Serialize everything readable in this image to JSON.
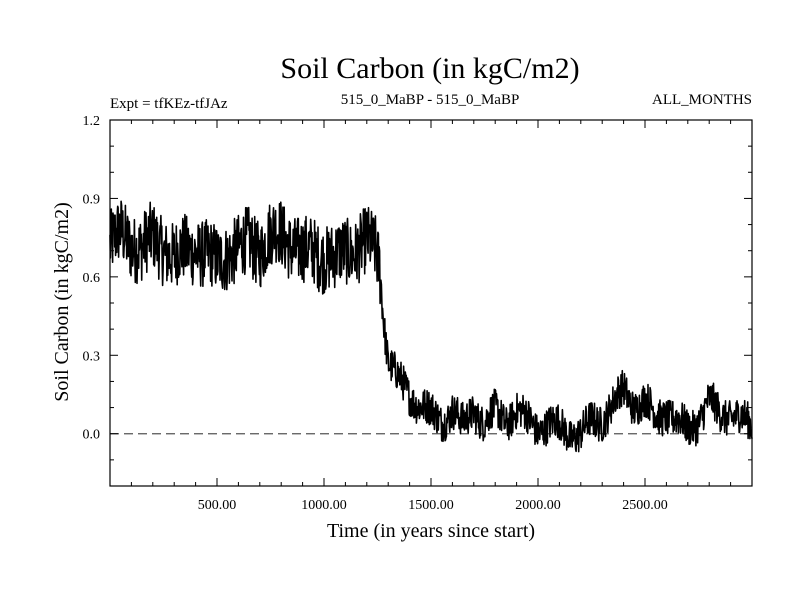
{
  "chart_data": {
    "type": "line",
    "title": "Soil Carbon (in kgC/m2)",
    "subtitle_left": "Expt = tfKEz-tfJAz",
    "subtitle_center": "515_0_MaBP - 515_0_MaBP",
    "subtitle_right": "ALL_MONTHS",
    "xlabel": "Time (in years since start)",
    "ylabel": "Soil Carbon (in kgC/m2)",
    "xlim": [
      0,
      3000
    ],
    "ylim": [
      -0.2,
      1.2
    ],
    "xticks": [
      500,
      1000,
      1500,
      2000,
      2500
    ],
    "xtick_labels": [
      "500.00",
      "1000.00",
      "1500.00",
      "2000.00",
      "2500.00"
    ],
    "yticks": [
      0.0,
      0.3,
      0.6,
      0.9,
      1.2
    ],
    "ytick_labels": [
      "0.0",
      "0.3",
      "0.6",
      "0.9",
      "1.2"
    ],
    "zero_line": "dashed",
    "grid": false,
    "series": [
      {
        "color": "#000000",
        "x": [
          0,
          50,
          100,
          150,
          200,
          250,
          300,
          350,
          400,
          450,
          500,
          550,
          600,
          650,
          700,
          750,
          800,
          850,
          900,
          950,
          1000,
          1050,
          1100,
          1150,
          1200,
          1240,
          1260,
          1280,
          1300,
          1350,
          1400,
          1450,
          1500,
          1550,
          1600,
          1650,
          1700,
          1750,
          1800,
          1850,
          1900,
          1950,
          2000,
          2050,
          2100,
          2150,
          2200,
          2250,
          2300,
          2350,
          2400,
          2450,
          2500,
          2550,
          2600,
          2650,
          2700,
          2750,
          2800,
          2850,
          2900,
          2950,
          3000
        ],
        "values": [
          0.72,
          0.75,
          0.7,
          0.68,
          0.72,
          0.7,
          0.68,
          0.72,
          0.74,
          0.71,
          0.68,
          0.7,
          0.69,
          0.71,
          0.67,
          0.73,
          0.75,
          0.72,
          0.7,
          0.73,
          0.71,
          0.69,
          0.72,
          0.7,
          0.71,
          0.68,
          0.62,
          0.4,
          0.25,
          0.18,
          0.14,
          0.12,
          0.1,
          0.08,
          0.12,
          0.05,
          0.1,
          0.03,
          0.06,
          0.02,
          0.06,
          0.04,
          0.02,
          0.05,
          0.06,
          0.03,
          0.02,
          0.06,
          0.05,
          0.09,
          0.14,
          0.08,
          0.1,
          0.06,
          0.09,
          0.07,
          0.05,
          0.08,
          0.14,
          0.08,
          0.06,
          0.03,
          0.0
        ]
      }
    ]
  }
}
